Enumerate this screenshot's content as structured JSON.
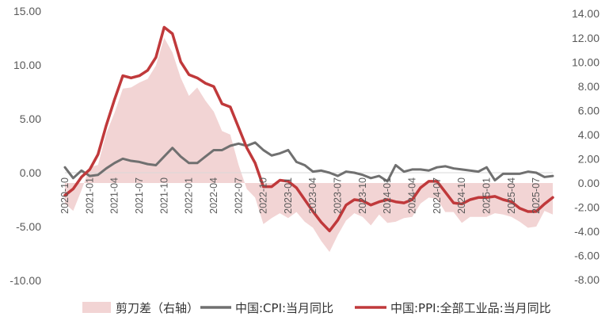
{
  "chart_data": {
    "type": "line",
    "title": "",
    "xlabel": "",
    "ylabel": "",
    "x": [
      "2020-10",
      "2020-11",
      "2020-12",
      "2021-01",
      "2021-02",
      "2021-03",
      "2021-04",
      "2021-05",
      "2021-06",
      "2021-07",
      "2021-08",
      "2021-09",
      "2021-10",
      "2021-11",
      "2021-12",
      "2022-01",
      "2022-02",
      "2022-03",
      "2022-04",
      "2022-05",
      "2022-06",
      "2022-07",
      "2022-08",
      "2022-09",
      "2022-10",
      "2022-11",
      "2022-12",
      "2023-01",
      "2023-02",
      "2023-03",
      "2023-04",
      "2023-05",
      "2023-06",
      "2023-07",
      "2023-08",
      "2023-09",
      "2023-10",
      "2023-11",
      "2023-12",
      "2024-01",
      "2024-02",
      "2024-03",
      "2024-04",
      "2024-05",
      "2024-06",
      "2024-07",
      "2024-08",
      "2024-09",
      "2024-10",
      "2024-11",
      "2024-12",
      "2025-01",
      "2025-02",
      "2025-03",
      "2025-04",
      "2025-05",
      "2025-06",
      "2025-07",
      "2025-08",
      "2025-09"
    ],
    "x_tick_labels": [
      "2020-10",
      "2021-01",
      "2021-04",
      "2021-07",
      "2021-10",
      "2022-01",
      "2022-04",
      "2022-07",
      "2022-10",
      "2023-01",
      "2023-04",
      "2023-07",
      "2023-10",
      "2024-01",
      "2024-04",
      "2024-07",
      "2024-10",
      "2025-01",
      "2025-04",
      "2025-07"
    ],
    "left_axis": {
      "ylim": [
        -10,
        15
      ],
      "ticks": [
        15,
        10,
        5,
        0,
        -5,
        -10
      ],
      "tick_labels": [
        "15.00",
        "10.00",
        "5.00",
        "0.00",
        "-5.00",
        "-10.00"
      ]
    },
    "right_axis": {
      "ylim": [
        -8,
        14
      ],
      "ticks": [
        14,
        12,
        10,
        8,
        6,
        4,
        2,
        0,
        -2,
        -4,
        -6,
        -8
      ],
      "tick_labels": [
        "14.00",
        "12.00",
        "10.00",
        "8.00",
        "6.00",
        "4.00",
        "2.00",
        "0.00",
        "-2.00",
        "-4.00",
        "-6.00",
        "-8.00"
      ]
    },
    "series": [
      {
        "name": "剪刀差（右轴）",
        "kind": "area",
        "axis": "right",
        "color": "#f2d4d4",
        "values": [
          -1.7,
          -2.3,
          -0.6,
          1.3,
          1.5,
          4.1,
          5.8,
          7.8,
          7.9,
          8.3,
          8.6,
          9.7,
          12.0,
          10.8,
          8.7,
          7.2,
          7.9,
          6.8,
          5.9,
          4.3,
          4.0,
          1.5,
          -0.5,
          -1.2,
          -3.4,
          -2.9,
          -2.5,
          -2.9,
          -2.4,
          -3.2,
          -3.7,
          -4.8,
          -5.7,
          -4.3,
          -3.1,
          -2.5,
          -2.8,
          -3.5,
          -2.6,
          -3.3,
          -3.2,
          -2.9,
          -2.8,
          -1.7,
          -1.2,
          -1.3,
          -2.4,
          -2.4,
          -3.3,
          -2.8,
          -2.8,
          -2.8,
          -2.5,
          -2.6,
          -2.8,
          -3.2,
          -3.7,
          -3.6,
          -2.3,
          -2.6
        ]
      },
      {
        "name": "中国:CPI:当月同比",
        "kind": "line",
        "axis": "left",
        "color": "#707070",
        "values": [
          0.5,
          -0.5,
          0.2,
          -0.3,
          -0.2,
          0.4,
          0.9,
          1.3,
          1.1,
          1.0,
          0.8,
          0.7,
          1.5,
          2.3,
          1.5,
          0.9,
          0.9,
          1.5,
          2.1,
          2.1,
          2.5,
          2.7,
          2.5,
          2.8,
          2.1,
          1.6,
          1.8,
          2.1,
          1.0,
          0.7,
          0.1,
          0.2,
          0.0,
          -0.3,
          0.1,
          0.0,
          -0.2,
          -0.5,
          -0.3,
          -0.8,
          0.7,
          0.1,
          0.3,
          0.3,
          0.2,
          0.5,
          0.6,
          0.4,
          0.3,
          0.2,
          0.1,
          0.5,
          -0.7,
          -0.1,
          -0.1,
          -0.1,
          0.1,
          0.0,
          -0.4,
          -0.3
        ]
      },
      {
        "name": "中国:PPI:全部工业品:当月同比",
        "kind": "line",
        "axis": "left",
        "color": "#c0393b",
        "values": [
          -2.1,
          -1.5,
          -0.4,
          0.3,
          1.7,
          4.4,
          6.8,
          9.0,
          8.8,
          9.0,
          9.5,
          10.7,
          13.5,
          12.9,
          10.3,
          9.1,
          8.8,
          8.3,
          8.0,
          6.4,
          6.1,
          4.2,
          2.3,
          0.9,
          -1.3,
          -1.3,
          -0.7,
          -0.8,
          -1.4,
          -2.5,
          -3.6,
          -4.6,
          -5.4,
          -4.4,
          -3.0,
          -2.5,
          -2.6,
          -3.0,
          -2.7,
          -2.5,
          -2.7,
          -2.8,
          -2.5,
          -1.4,
          -0.8,
          -0.8,
          -1.8,
          -2.8,
          -2.9,
          -2.5,
          -2.3,
          -2.3,
          -2.2,
          -2.5,
          -2.7,
          -3.3,
          -3.6,
          -3.6,
          -2.9,
          -2.3
        ]
      }
    ],
    "legend": {
      "position": "bottom"
    },
    "grid": false
  }
}
